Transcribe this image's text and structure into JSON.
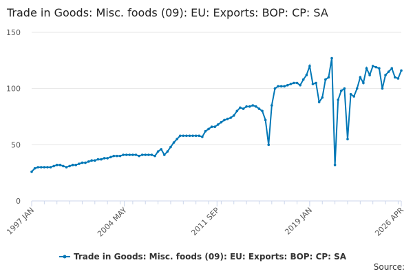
{
  "chart_data": {
    "type": "line",
    "title": "Trade in Goods: Misc. foods (09): EU: Exports: BOP: CP: SA",
    "source": "Source:",
    "x": [
      "1997 JAN",
      "1997 APR",
      "1997 JUL",
      "1997 OCT",
      "1998 JAN",
      "1998 APR",
      "1998 JUL",
      "1998 OCT",
      "1999 JAN",
      "1999 APR",
      "1999 JUL",
      "1999 OCT",
      "2000 JAN",
      "2000 APR",
      "2000 JUL",
      "2000 OCT",
      "2001 JAN",
      "2001 APR",
      "2001 JUL",
      "2001 OCT",
      "2002 JAN",
      "2002 APR",
      "2002 JUL",
      "2002 OCT",
      "2003 JAN",
      "2003 APR",
      "2003 JUL",
      "2003 OCT",
      "2004 JAN",
      "2004 APR",
      "2004 JUL",
      "2004 OCT",
      "2005 JAN",
      "2005 APR",
      "2005 JUL",
      "2005 OCT",
      "2006 JAN",
      "2006 APR",
      "2006 JUL",
      "2006 OCT",
      "2007 JAN",
      "2007 APR",
      "2007 JUL",
      "2007 OCT",
      "2008 JAN",
      "2008 APR",
      "2008 JUL",
      "2008 OCT",
      "2009 JAN",
      "2009 APR",
      "2009 JUL",
      "2009 OCT",
      "2010 JAN",
      "2010 APR",
      "2010 JUL",
      "2010 OCT",
      "2011 JAN",
      "2011 APR",
      "2011 JUL",
      "2011 OCT",
      "2012 JAN",
      "2012 APR",
      "2012 JUL",
      "2012 OCT",
      "2013 JAN",
      "2013 APR",
      "2013 JUL",
      "2013 OCT",
      "2014 JAN",
      "2014 APR",
      "2014 JUL",
      "2014 OCT",
      "2015 JAN",
      "2015 APR",
      "2015 JUL",
      "2015 OCT",
      "2016 JAN",
      "2016 APR",
      "2016 JUL",
      "2016 OCT",
      "2017 JAN",
      "2017 APR",
      "2017 JUL",
      "2017 OCT",
      "2018 JAN",
      "2018 APR",
      "2018 JUL",
      "2018 OCT",
      "2019 JAN",
      "2019 APR",
      "2019 JUL",
      "2019 OCT",
      "2020 JAN",
      "2020 APR",
      "2020 JUL",
      "2020 OCT",
      "2021 JAN",
      "2021 APR",
      "2021 JUL",
      "2021 OCT",
      "2022 JAN",
      "2022 APR",
      "2022 JUL",
      "2022 OCT",
      "2023 JAN",
      "2023 APR",
      "2023 JUL",
      "2023 OCT",
      "2024 JAN",
      "2024 APR",
      "2024 JUL",
      "2024 OCT",
      "2025 JAN",
      "2025 APR",
      "2025 JUL",
      "2025 OCT",
      "2026 JAN",
      "2026 APR"
    ],
    "series": [
      {
        "name": "Trade in Goods: Misc. foods (09): EU: Exports: BOP: CP: SA",
        "color": "#0077b6",
        "values": [
          26,
          29,
          30,
          30,
          30,
          30,
          30,
          31,
          32,
          32,
          31,
          30,
          31,
          32,
          32,
          33,
          34,
          34,
          35,
          36,
          36,
          37,
          37,
          38,
          38,
          39,
          40,
          40,
          40,
          41,
          41,
          41,
          41,
          41,
          40,
          41,
          41,
          41,
          41,
          40,
          44,
          46,
          41,
          44,
          48,
          52,
          55,
          58,
          58,
          58,
          58,
          58,
          58,
          58,
          57,
          62,
          64,
          66,
          66,
          68,
          70,
          72,
          73,
          74,
          76,
          80,
          83,
          82,
          84,
          84,
          85,
          84,
          82,
          80,
          72,
          50,
          85,
          100,
          102,
          102,
          102,
          103,
          104,
          105,
          105,
          103,
          108,
          112,
          120,
          104,
          105,
          88,
          92,
          108,
          110,
          127,
          32,
          90,
          98,
          100,
          55,
          95,
          93,
          100,
          110,
          105,
          118,
          112,
          120,
          119,
          118,
          100,
          112,
          115,
          118,
          110,
          109,
          116
        ]
      }
    ],
    "ylim": [
      0,
      150
    ],
    "yticks": [
      0,
      50,
      100,
      150
    ],
    "xticks": [
      "1997 JAN",
      "2004 MAY",
      "2011 SEP",
      "2019 JAN",
      "2026 APR"
    ],
    "grid": true
  }
}
